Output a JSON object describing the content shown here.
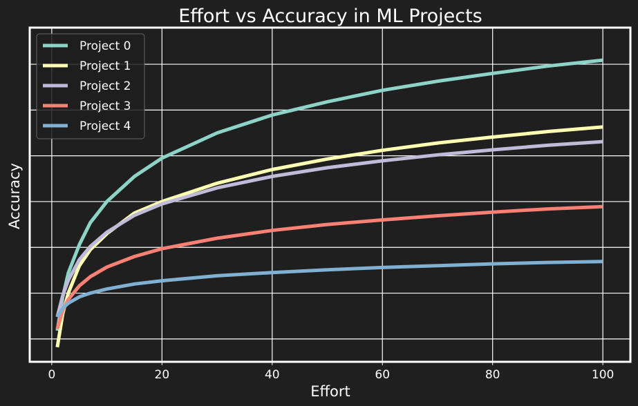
{
  "chart_data": {
    "type": "line",
    "title": "Effort vs Accuracy in ML Projects",
    "xlabel": "Effort",
    "ylabel": "Accuracy",
    "xlim": [
      -4,
      105
    ],
    "ylim": [
      -5,
      68
    ],
    "x_ticks": [
      0,
      20,
      40,
      60,
      80,
      100
    ],
    "y_gridlines": [
      0,
      10,
      20,
      30,
      40,
      50,
      60
    ],
    "y_tick_labels_shown": false,
    "grid": true,
    "legend_position": "top-left",
    "background_color": "#1f1f1f",
    "grid_color": "#ffffff",
    "x": [
      1,
      2,
      3,
      5,
      7,
      10,
      15,
      20,
      30,
      40,
      50,
      60,
      70,
      80,
      90,
      100
    ],
    "series": [
      {
        "name": "Project 0",
        "color": "#8dd3c7",
        "values": [
          1.8,
          9.2,
          14.4,
          20.6,
          25.4,
          30.0,
          35.5,
          39.5,
          45.0,
          48.9,
          51.8,
          54.3,
          56.3,
          58.0,
          59.6,
          60.9
        ]
      },
      {
        "name": "Project 1",
        "color": "#feffb3",
        "values": [
          -1.8,
          5.5,
          10.0,
          16.0,
          19.5,
          23.0,
          27.5,
          30.0,
          34.0,
          37.0,
          39.3,
          41.2,
          42.8,
          44.1,
          45.3,
          46.3
        ]
      },
      {
        "name": "Project 2",
        "color": "#bfbbd9",
        "values": [
          4.8,
          9.5,
          12.8,
          17.3,
          20.2,
          23.3,
          27.0,
          29.5,
          33.0,
          35.5,
          37.4,
          38.9,
          40.2,
          41.3,
          42.3,
          43.1
        ]
      },
      {
        "name": "Project 3",
        "color": "#fa8174",
        "values": [
          2.2,
          6.2,
          8.6,
          11.6,
          13.6,
          15.7,
          18.0,
          19.7,
          22.0,
          23.7,
          25.0,
          26.0,
          26.9,
          27.7,
          28.4,
          28.9
        ]
      },
      {
        "name": "Project 4",
        "color": "#81b1d2",
        "values": [
          4.8,
          6.7,
          7.8,
          9.2,
          10.0,
          10.9,
          12.0,
          12.7,
          13.8,
          14.5,
          15.1,
          15.6,
          16.0,
          16.4,
          16.7,
          16.9
        ]
      }
    ]
  }
}
